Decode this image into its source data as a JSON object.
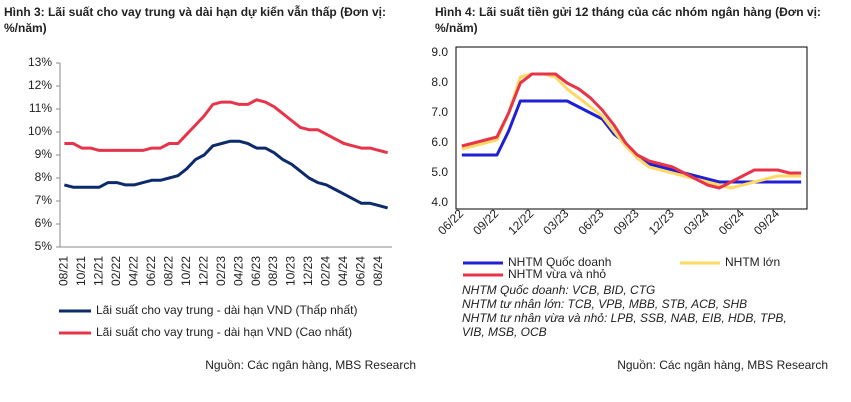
{
  "chart_data": [
    {
      "type": "line",
      "title": "Hình 3: Lãi suất cho vay trung và dài hạn dự kiến vẫn thấp (Đơn vị: %/năm)",
      "categories": [
        "08/21",
        null,
        "10/21",
        null,
        "12/21",
        null,
        "02/22",
        null,
        "04/22",
        null,
        "06/22",
        null,
        "08/22",
        null,
        "10/22",
        null,
        "12/22",
        null,
        "02/23",
        null,
        "04/23",
        null,
        "06/23",
        null,
        "08/23",
        null,
        "10/23",
        null,
        "12/23",
        null,
        "02/24",
        null,
        "04/24",
        null,
        "06/24",
        null,
        "08/24",
        null
      ],
      "series": [
        {
          "name": "Lãi suất cho vay trung - dài hạn VND (Thấp nhất)",
          "color": "#0d2a6b",
          "values": [
            7.7,
            7.6,
            7.6,
            7.6,
            7.6,
            7.8,
            7.8,
            7.7,
            7.7,
            7.8,
            7.9,
            7.9,
            8.0,
            8.1,
            8.4,
            8.8,
            9.0,
            9.4,
            9.5,
            9.6,
            9.6,
            9.5,
            9.3,
            9.3,
            9.1,
            8.8,
            8.6,
            8.3,
            8.0,
            7.8,
            7.7,
            7.5,
            7.3,
            7.1,
            6.9,
            6.9,
            6.8,
            6.7
          ]
        },
        {
          "name": "Lãi suất cho vay trung - dài hạn VND (Cao nhất)",
          "color": "#e8344a",
          "values": [
            9.5,
            9.5,
            9.3,
            9.3,
            9.2,
            9.2,
            9.2,
            9.2,
            9.2,
            9.2,
            9.3,
            9.3,
            9.5,
            9.5,
            9.9,
            10.3,
            10.7,
            11.2,
            11.3,
            11.3,
            11.2,
            11.2,
            11.4,
            11.3,
            11.1,
            10.8,
            10.5,
            10.2,
            10.1,
            10.1,
            9.9,
            9.7,
            9.5,
            9.4,
            9.3,
            9.3,
            9.2,
            9.1
          ]
        }
      ],
      "ylim": [
        5,
        13
      ],
      "yticks": [
        {
          "value": 5,
          "label": "5%"
        },
        {
          "value": 6,
          "label": "6%"
        },
        {
          "value": 7,
          "label": "7%"
        },
        {
          "value": 8,
          "label": "8%"
        },
        {
          "value": 9,
          "label": "9%"
        },
        {
          "value": 10,
          "label": "10%"
        },
        {
          "value": 11,
          "label": "11%"
        },
        {
          "value": 12,
          "label": "12%"
        },
        {
          "value": 13,
          "label": "13%"
        }
      ],
      "grid": false,
      "source": "Nguồn: Các ngân hàng, MBS Research"
    },
    {
      "type": "line",
      "title": "Hình 4: Lãi suất tiền gửi 12 tháng của các nhóm ngân hàng (Đơn vị: %/năm)",
      "categories": [
        "06/22",
        null,
        null,
        "09/22",
        null,
        null,
        "12/22",
        null,
        null,
        "03/23",
        null,
        null,
        "06/23",
        null,
        null,
        "09/23",
        null,
        null,
        "12/23",
        null,
        null,
        "03/24",
        null,
        null,
        "06/24",
        null,
        null,
        "09/24",
        null,
        null
      ],
      "series": [
        {
          "name": "NHTM Quốc doanh",
          "color": "#1f1fd6",
          "values": [
            5.6,
            5.6,
            5.6,
            5.6,
            6.4,
            7.4,
            7.4,
            7.4,
            7.4,
            7.4,
            7.2,
            7.0,
            6.8,
            6.3,
            6.0,
            5.5,
            5.3,
            5.2,
            5.1,
            5.0,
            4.9,
            4.8,
            4.7,
            4.7,
            4.7,
            4.7,
            4.7,
            4.7,
            4.7,
            4.7
          ]
        },
        {
          "name": "NHTM lớn",
          "color": "#ffd966",
          "values": [
            5.8,
            5.9,
            6.0,
            6.1,
            7.0,
            8.2,
            8.3,
            8.3,
            8.2,
            7.8,
            7.5,
            7.2,
            6.9,
            6.4,
            5.9,
            5.5,
            5.2,
            5.1,
            5.0,
            4.9,
            4.8,
            4.7,
            4.6,
            4.5,
            4.6,
            4.7,
            4.8,
            4.9,
            4.9,
            4.9
          ]
        },
        {
          "name": "NHTM vừa và nhỏ",
          "color": "#e8344a",
          "values": [
            5.9,
            6.0,
            6.1,
            6.2,
            7.0,
            8.0,
            8.3,
            8.3,
            8.3,
            8.0,
            7.8,
            7.5,
            7.1,
            6.6,
            6.0,
            5.6,
            5.4,
            5.3,
            5.2,
            5.0,
            4.8,
            4.6,
            4.5,
            4.7,
            4.9,
            5.1,
            5.1,
            5.1,
            5.0,
            5.0
          ]
        }
      ],
      "ylim": [
        4,
        9
      ],
      "yticks": [
        {
          "value": 4,
          "label": "4.0"
        },
        {
          "value": 5,
          "label": "5.0"
        },
        {
          "value": 6,
          "label": "6.0"
        },
        {
          "value": 7,
          "label": "7.0"
        },
        {
          "value": 8,
          "label": "8.0"
        },
        {
          "value": 9,
          "label": "9.0"
        }
      ],
      "grid": false,
      "notes": [
        "NHTM Quốc doanh: VCB, BID, CTG",
        "NHTM tư nhân lớn: TCB, VPB, MBB, STB, ACB, SHB",
        "NHTM tư nhân vừa và nhỏ: LPB, SSB, NAB, EIB, HDB, TPB,",
        "VIB, MSB, OCB"
      ],
      "source": "Nguồn: Các ngân hàng, MBS Research"
    }
  ]
}
